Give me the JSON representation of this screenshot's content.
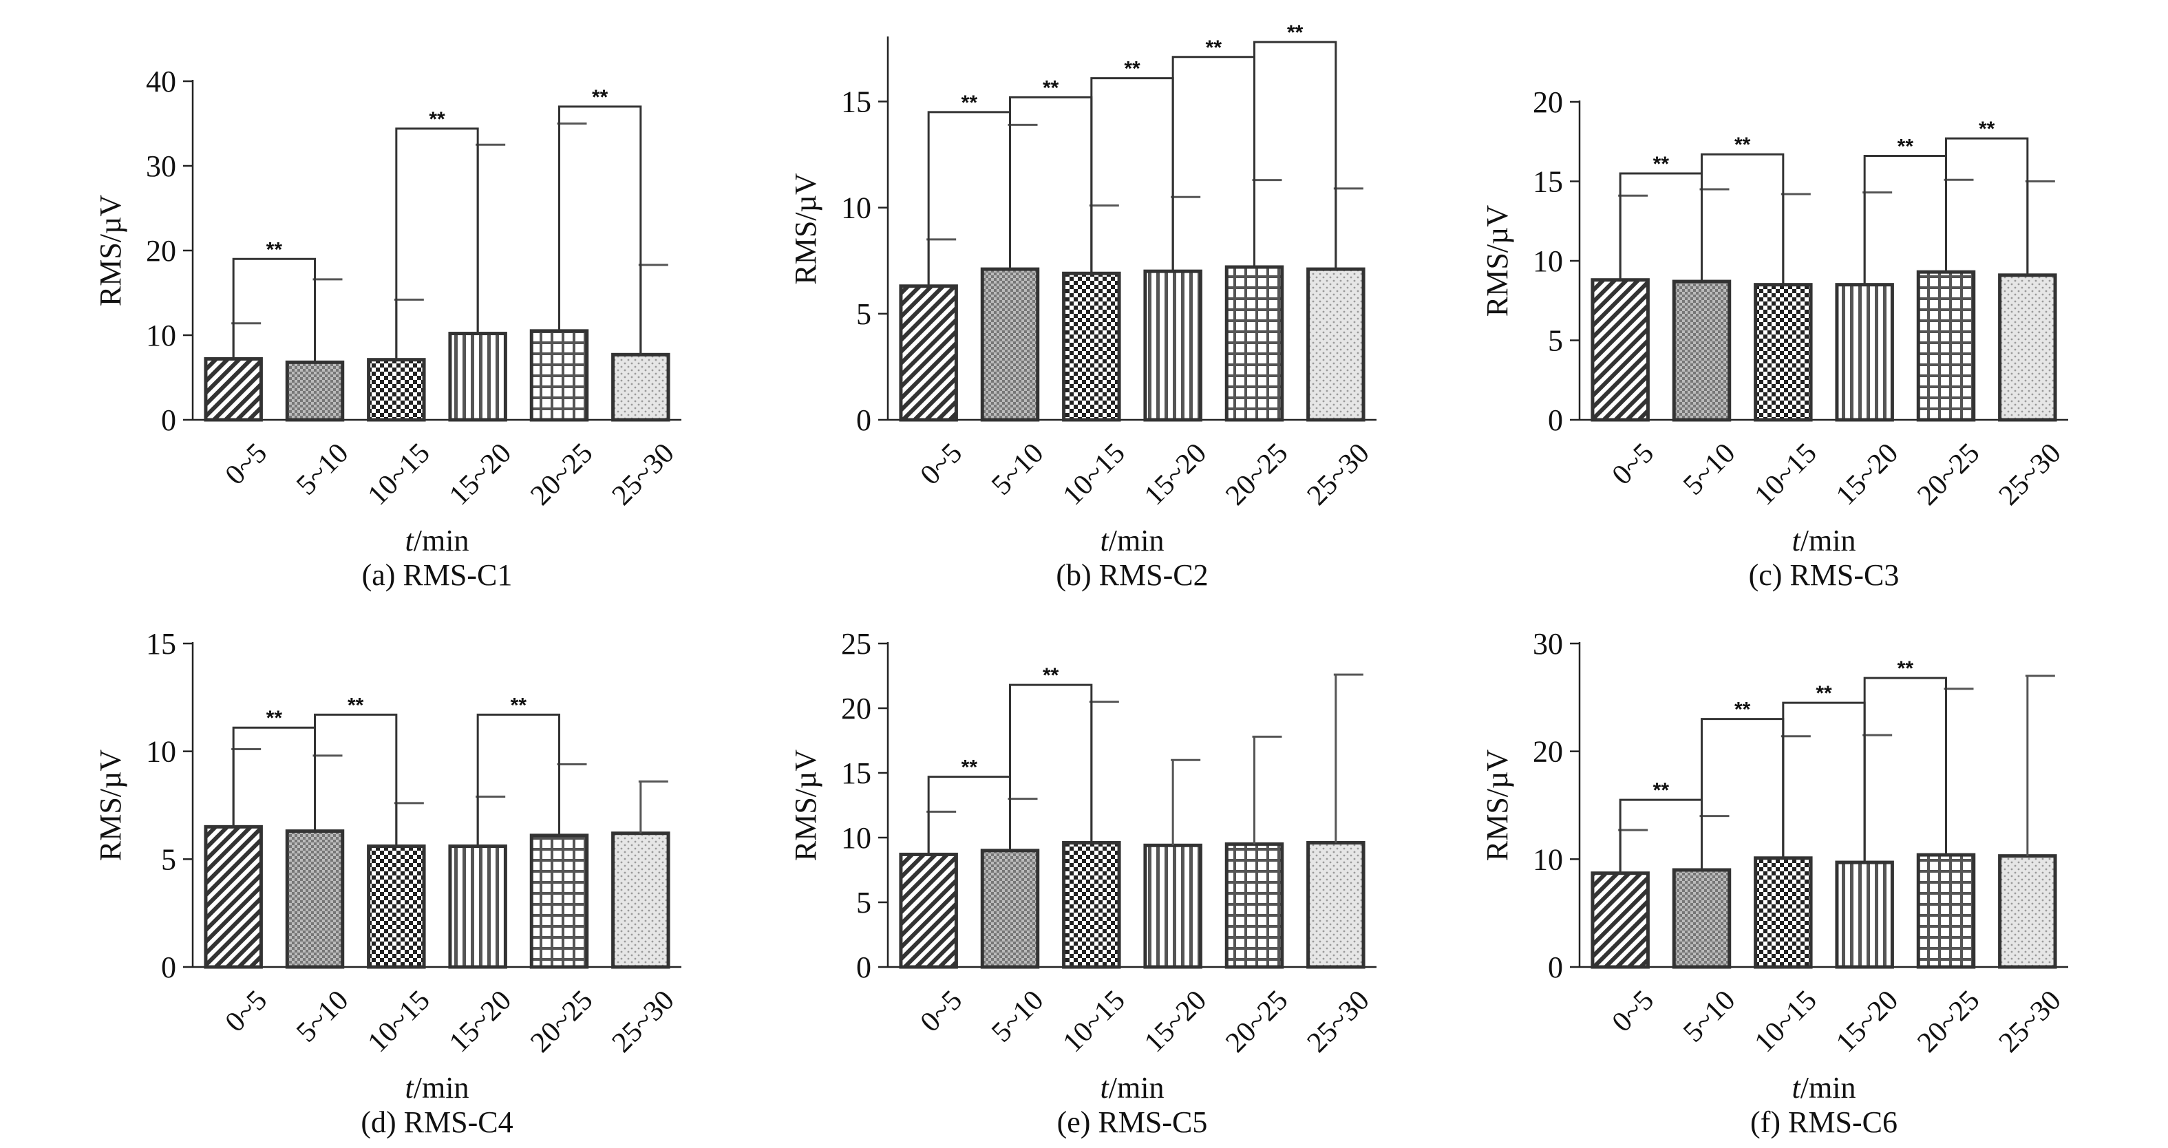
{
  "chart_data": [
    {
      "type": "bar",
      "panel": "(a)",
      "title": "(a) RMS-C1",
      "ylabel": "RMS/µV",
      "xlabel_italic": "t",
      "xlabel_rest": "/min",
      "categories": [
        "0~5",
        "5~10",
        "10~15",
        "15~20",
        "20~25",
        "25~30"
      ],
      "values": [
        7.2,
        6.8,
        7.1,
        10.2,
        10.5,
        7.7
      ],
      "errors": [
        11.4,
        16.6,
        14.2,
        32.5,
        35.0,
        18.3
      ],
      "ylim": [
        0,
        40
      ],
      "yticks": [
        0,
        10,
        20,
        30,
        40
      ],
      "significance": [
        {
          "from": 0,
          "to": 1,
          "level": 19,
          "label": "**"
        },
        {
          "from": 2,
          "to": 3,
          "level": 34.4,
          "label": "**"
        },
        {
          "from": 4,
          "to": 5,
          "level": 37,
          "label": "**"
        }
      ]
    },
    {
      "type": "bar",
      "panel": "(b)",
      "title": "(b) RMS-C2",
      "ylabel": "RMS/µV",
      "xlabel_italic": "t",
      "xlabel_rest": "/min",
      "categories": [
        "0~5",
        "5~10",
        "10~15",
        "15~20",
        "20~25",
        "25~30"
      ],
      "values": [
        6.3,
        7.1,
        6.9,
        7.0,
        7.2,
        7.1
      ],
      "errors": [
        8.5,
        13.9,
        10.1,
        10.5,
        11.3,
        10.9
      ],
      "ylim": [
        0,
        18
      ],
      "yticks": [
        0,
        5,
        10,
        15
      ],
      "significance": [
        {
          "from": 0,
          "to": 1,
          "level": 14.5,
          "label": "**"
        },
        {
          "from": 1,
          "to": 2,
          "level": 15.2,
          "label": "**"
        },
        {
          "from": 2,
          "to": 3,
          "level": 16.1,
          "label": "**"
        },
        {
          "from": 3,
          "to": 4,
          "level": 17.1,
          "label": "**"
        },
        {
          "from": 4,
          "to": 5,
          "level": 17.8,
          "label": "**"
        }
      ]
    },
    {
      "type": "bar",
      "panel": "(c)",
      "title": "(c) RMS-C3",
      "ylabel": "RMS/µV",
      "xlabel_italic": "t",
      "xlabel_rest": "/min",
      "categories": [
        "0~5",
        "5~10",
        "10~15",
        "15~20",
        "20~25",
        "25~30"
      ],
      "values": [
        8.8,
        8.7,
        8.5,
        8.5,
        9.3,
        9.1
      ],
      "errors": [
        14.1,
        14.5,
        14.2,
        14.3,
        15.1,
        15.0
      ],
      "ylim": [
        0,
        20
      ],
      "yticks": [
        0,
        5,
        10,
        15,
        20
      ],
      "significance": [
        {
          "from": 0,
          "to": 1,
          "level": 15.5,
          "label": "**"
        },
        {
          "from": 1,
          "to": 2,
          "level": 16.7,
          "label": "**"
        },
        {
          "from": 3,
          "to": 4,
          "level": 16.6,
          "label": "**"
        },
        {
          "from": 4,
          "to": 5,
          "level": 17.7,
          "label": "**"
        }
      ]
    },
    {
      "type": "bar",
      "panel": "(d)",
      "title": "(d) RMS-C4",
      "ylabel": "RMS/µV",
      "xlabel_italic": "t",
      "xlabel_rest": "/min",
      "categories": [
        "0~5",
        "5~10",
        "10~15",
        "15~20",
        "20~25",
        "25~30"
      ],
      "values": [
        6.5,
        6.3,
        5.6,
        5.6,
        6.1,
        6.2
      ],
      "errors": [
        10.1,
        9.8,
        7.6,
        7.9,
        9.4,
        8.6
      ],
      "ylim": [
        0,
        15
      ],
      "yticks": [
        0,
        5,
        10,
        15
      ],
      "significance": [
        {
          "from": 0,
          "to": 1,
          "level": 11.1,
          "label": "**"
        },
        {
          "from": 1,
          "to": 2,
          "level": 11.7,
          "label": "**"
        },
        {
          "from": 3,
          "to": 4,
          "level": 11.7,
          "label": "**"
        }
      ]
    },
    {
      "type": "bar",
      "panel": "(e)",
      "title": "(e) RMS-C5",
      "ylabel": "RMS/µV",
      "xlabel_italic": "t",
      "xlabel_rest": "/min",
      "categories": [
        "0~5",
        "5~10",
        "10~15",
        "15~20",
        "20~25",
        "25~30"
      ],
      "values": [
        8.7,
        9.0,
        9.6,
        9.4,
        9.5,
        9.6
      ],
      "errors": [
        12.0,
        13.0,
        20.5,
        16.0,
        17.8,
        22.6
      ],
      "ylim": [
        0,
        25
      ],
      "yticks": [
        0,
        5,
        10,
        15,
        20,
        25
      ],
      "significance": [
        {
          "from": 0,
          "to": 1,
          "level": 14.7,
          "label": "**"
        },
        {
          "from": 1,
          "to": 2,
          "level": 21.8,
          "label": "**"
        }
      ]
    },
    {
      "type": "bar",
      "panel": "(f)",
      "title": "(f) RMS-C6",
      "ylabel": "RMS/µV",
      "xlabel_italic": "t",
      "xlabel_rest": "/min",
      "categories": [
        "0~5",
        "5~10",
        "10~15",
        "15~20",
        "20~25",
        "25~30"
      ],
      "values": [
        8.7,
        9.0,
        10.1,
        9.7,
        10.4,
        10.3
      ],
      "errors": [
        12.7,
        14.0,
        21.4,
        21.5,
        25.8,
        27.0
      ],
      "ylim": [
        0,
        30
      ],
      "yticks": [
        0,
        10,
        20,
        30
      ],
      "significance": [
        {
          "from": 0,
          "to": 1,
          "level": 15.5,
          "label": "**"
        },
        {
          "from": 1,
          "to": 2,
          "level": 23.0,
          "label": "**"
        },
        {
          "from": 2,
          "to": 3,
          "level": 24.5,
          "label": "**"
        },
        {
          "from": 3,
          "to": 4,
          "level": 26.8,
          "label": "**"
        }
      ]
    }
  ]
}
